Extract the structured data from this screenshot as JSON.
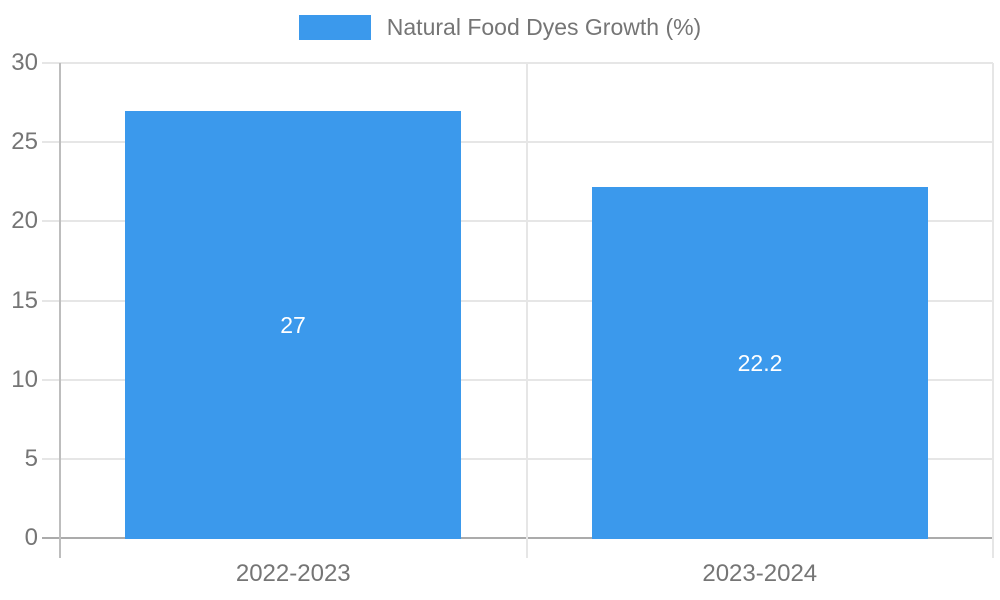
{
  "chart_data": {
    "type": "bar",
    "title": "",
    "legend_label": "Natural Food Dyes Growth (%)",
    "legend_position": "top",
    "categories": [
      "2022-2023",
      "2023-2024"
    ],
    "values": [
      27,
      22.2
    ],
    "value_labels": [
      "27",
      "22.2"
    ],
    "xlabel": "",
    "ylabel": "",
    "ylim": [
      0,
      30
    ],
    "yticks": [
      0,
      5,
      10,
      15,
      20,
      25,
      30
    ],
    "ytick_labels": [
      "0",
      "5",
      "10",
      "15",
      "20",
      "25",
      "30"
    ],
    "grid": true,
    "colors": {
      "bar": "#3B99EC",
      "grid": "#E6E6E6",
      "axis": "#BDBDBD",
      "zero_line": "#ABABAB",
      "text": "#757575",
      "bar_label": "#FFFFFF"
    }
  }
}
